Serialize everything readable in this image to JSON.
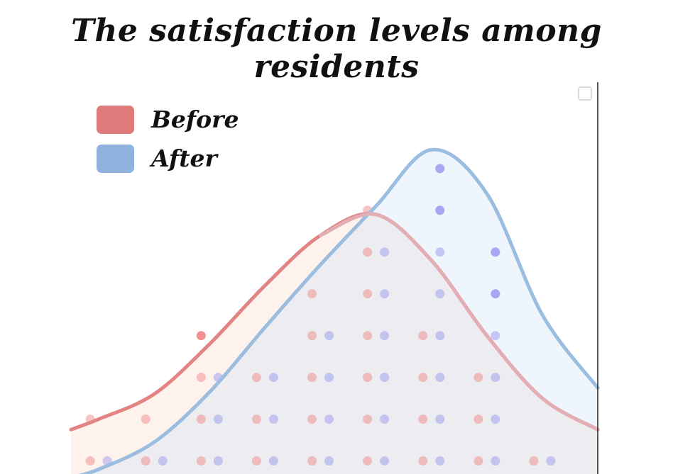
{
  "title": "The satisfaction levels among residents",
  "legend": {
    "items": [
      {
        "label": "Before",
        "color": "#e07b7b"
      },
      {
        "label": "After",
        "color": "#8eb3de"
      }
    ],
    "placement": "top-left"
  },
  "chart_data": {
    "type": "area",
    "title": "The satisfaction levels among residents",
    "xlabel": "",
    "ylabel": "",
    "xlim": [
      -0.5,
      9
    ],
    "ylim": [
      0,
      9.5
    ],
    "grid": false,
    "legend_placement": "top-left",
    "series": [
      {
        "name": "Before",
        "color": "#e07b7b",
        "density_curve": [
          [
            -0.5,
            1.25
          ],
          [
            0,
            1.5
          ],
          [
            1,
            2.1
          ],
          [
            2,
            3.3
          ],
          [
            3,
            4.7
          ],
          [
            4,
            5.9
          ],
          [
            5,
            6.4
          ],
          [
            6,
            5.3
          ],
          [
            7,
            3.5
          ],
          [
            8,
            2.0
          ],
          [
            9,
            1.25
          ]
        ],
        "dot_counts": [
          [
            0,
            2
          ],
          [
            1,
            2
          ],
          [
            2,
            4
          ],
          [
            3,
            3
          ],
          [
            4,
            5
          ],
          [
            5,
            7
          ],
          [
            6,
            4
          ],
          [
            7,
            3
          ],
          [
            8,
            1
          ]
        ]
      },
      {
        "name": "After",
        "color": "#8eb3de",
        "density_curve": [
          [
            -0.5,
            0.1
          ],
          [
            0,
            0.3
          ],
          [
            1,
            0.95
          ],
          [
            2,
            2.15
          ],
          [
            3,
            3.7
          ],
          [
            4,
            5.2
          ],
          [
            5,
            6.6
          ],
          [
            6,
            7.95
          ],
          [
            7,
            6.9
          ],
          [
            8,
            4.0
          ],
          [
            9,
            2.25
          ]
        ],
        "dot_counts": [
          [
            0,
            1
          ],
          [
            1,
            1
          ],
          [
            2,
            3
          ],
          [
            3,
            3
          ],
          [
            4,
            4
          ],
          [
            5,
            6
          ],
          [
            6,
            8
          ],
          [
            7,
            6
          ],
          [
            8,
            1
          ]
        ]
      }
    ]
  }
}
